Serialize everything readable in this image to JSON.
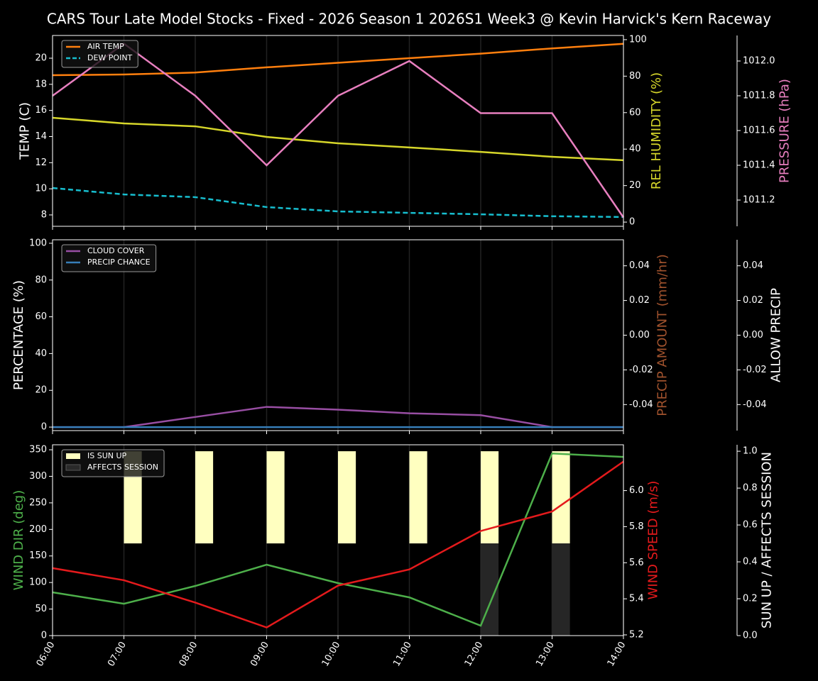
{
  "title": "CARS Tour Late Model Stocks - Fixed - 2026 Season 1 2026S1 Week3 @ Kevin Harvick's Kern Raceway",
  "chart_data": [
    {
      "type": "line",
      "legend": "upper left",
      "grid": true,
      "y_axes": [
        {
          "label": "TEMP (C)",
          "color": "#ffffff",
          "position": "left",
          "lim": [
            7.13,
            21.74
          ],
          "ticks": [
            8,
            10,
            12,
            14,
            16,
            18,
            20
          ]
        },
        {
          "label": "REL HUMIDITY (%)",
          "color": "#d6d62a",
          "position": "right",
          "lim": [
            -2.3,
            102.3
          ],
          "ticks": [
            0,
            20,
            40,
            60,
            80,
            100
          ]
        },
        {
          "label": "PRESSURE (hPa)",
          "color": "#e87fbf",
          "position": "outer",
          "lim": [
            1011.049,
            1012.147
          ],
          "ticks": [
            1011.2,
            1011.4,
            1011.6,
            1011.8,
            {
              "value": 1012.0,
              "label": "1012.0"
            }
          ]
        }
      ],
      "series": [
        {
          "name": "AIR TEMP",
          "color": "#ff7f0e",
          "axis": 0,
          "dash": false,
          "legend": true,
          "values": [
            18.7,
            18.75,
            18.9,
            19.3,
            19.65,
            20.0,
            20.35,
            20.75,
            21.1
          ]
        },
        {
          "name": "DEW POINT",
          "color": "#17becf",
          "axis": 0,
          "dash": true,
          "legend": true,
          "values": [
            10.06,
            9.57,
            9.36,
            8.6,
            8.27,
            8.16,
            8.05,
            7.9,
            7.84
          ]
        },
        {
          "color": "#d6d62a",
          "axis": 1,
          "dash": false,
          "legend": false,
          "values": [
            57.2,
            54.1,
            52.5,
            46.7,
            43.2,
            40.9,
            38.5,
            35.8,
            33.9
          ]
        },
        {
          "color": "#e87fbf",
          "axis": 2,
          "dash": false,
          "legend": false,
          "values": [
            1011.8,
            1012.1,
            1011.8,
            1011.4,
            1011.8,
            1012.0,
            1011.7,
            1011.7,
            1011.1
          ]
        }
      ]
    },
    {
      "type": "line",
      "legend": "upper left",
      "grid": true,
      "y_axes": [
        {
          "label": "PERCENTAGE (%)",
          "color": "#ffffff",
          "position": "left",
          "lim": [
            -1.9,
            101.9
          ],
          "ticks": [
            0,
            20,
            40,
            60,
            80,
            100
          ]
        },
        {
          "label": "PRECIP AMOUNT (mm/hr)",
          "color": "#a0522d",
          "position": "right",
          "lim": [
            -0.055,
            0.055
          ],
          "ticks": [
            -0.04,
            -0.02,
            {
              "value": 0,
              "label": "0.00"
            },
            0.02,
            0.04
          ]
        },
        {
          "label": "ALLOW PRECIP",
          "color": "#ffffff",
          "position": "outer",
          "lim": [
            -0.055,
            0.055
          ],
          "ticks": [
            -0.04,
            -0.02,
            {
              "value": 0,
              "label": "0.00"
            },
            0.02,
            0.04
          ]
        }
      ],
      "series": [
        {
          "name": "CLOUD COVER",
          "color": "#984ea3",
          "axis": 0,
          "dash": false,
          "legend": true,
          "values": [
            0,
            0,
            5.5,
            11,
            9.5,
            7.5,
            6.5,
            0,
            0
          ]
        },
        {
          "name": "PRECIP CHANCE",
          "color": "#377eb8",
          "axis": 0,
          "dash": false,
          "legend": true,
          "values": [
            0,
            0,
            0,
            0,
            0,
            0,
            0,
            0,
            0
          ]
        }
      ]
    },
    {
      "type": "line",
      "legend": "upper left",
      "grid": true,
      "categories": [
        "06:00",
        "07:00",
        "08:00",
        "09:00",
        "10:00",
        "11:00",
        "12:00",
        "13:00",
        "14:00"
      ],
      "y_axes": [
        {
          "label": "WIND DIR (deg)",
          "color": "#4daf4a",
          "position": "left",
          "lim": [
            0,
            359.4
          ],
          "ticks": [
            0,
            50,
            100,
            150,
            200,
            250,
            300,
            350
          ]
        },
        {
          "label": "WIND SPEED (m/s)",
          "color": "#e41a1c",
          "position": "right",
          "lim": [
            5.196,
            6.254
          ],
          "ticks": [
            5.2,
            5.4,
            5.6,
            5.8,
            {
              "value": 6.0,
              "label": "6.0"
            }
          ]
        },
        {
          "label": "SUN UP / AFFECTS SESSION",
          "color": "#ffffff",
          "position": "outer",
          "lim": [
            0,
            1.035
          ],
          "ticks": [
            {
              "value": 0,
              "label": "0.0"
            },
            0.2,
            0.4,
            0.6,
            0.8,
            {
              "value": 1,
              "label": "1.0"
            }
          ]
        }
      ],
      "series": [
        {
          "name": "IS SUN UP",
          "kind": "bar",
          "half": "upper",
          "color": "#ffffc0",
          "axis": 2,
          "legend": true,
          "values": [
            0,
            1,
            1,
            1,
            1,
            1,
            1,
            1,
            0
          ]
        },
        {
          "name": "AFFECTS SESSION",
          "kind": "bar",
          "half": "lower",
          "color": "#2a2a2a",
          "axis": 2,
          "legend": true,
          "values": [
            0,
            0,
            0,
            0,
            0,
            0,
            1,
            1,
            0
          ]
        },
        {
          "color": "#4daf4a",
          "axis": 0,
          "dash": false,
          "legend": false,
          "values": [
            81.5,
            60,
            93.5,
            133.6,
            98.9,
            72,
            18.7,
            343,
            336.6
          ]
        },
        {
          "color": "#e41a1c",
          "axis": 1,
          "dash": false,
          "legend": false,
          "values": [
            5.57,
            5.503,
            5.379,
            5.241,
            5.473,
            5.563,
            5.776,
            5.884,
            6.161
          ]
        }
      ]
    }
  ]
}
